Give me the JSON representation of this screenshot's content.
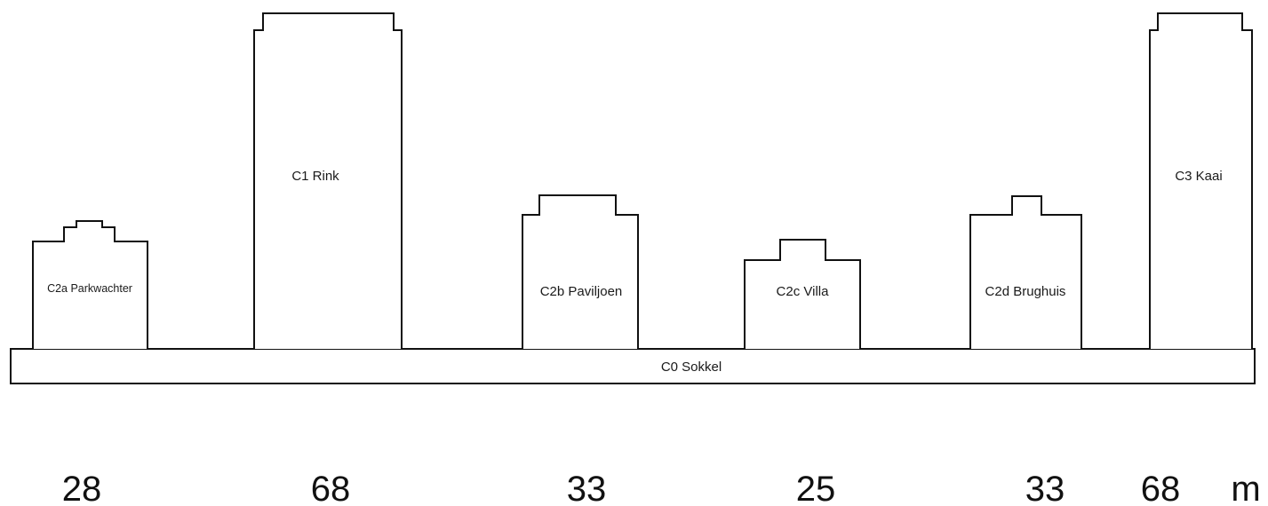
{
  "base": {
    "label": "C0 Sokkel"
  },
  "buildings": [
    {
      "id": "c2a",
      "label": "C2a Parkwachter",
      "height": "28"
    },
    {
      "id": "c1",
      "label": "C1 Rink",
      "height": "68"
    },
    {
      "id": "c2b",
      "label": "C2b Paviljoen",
      "height": "33"
    },
    {
      "id": "c2c",
      "label": "C2c Villa",
      "height": "25"
    },
    {
      "id": "c2d",
      "label": "C2d Brughuis",
      "height": "33"
    },
    {
      "id": "c3",
      "label": "C3 Kaai",
      "height": "68"
    }
  ],
  "unit": "m"
}
